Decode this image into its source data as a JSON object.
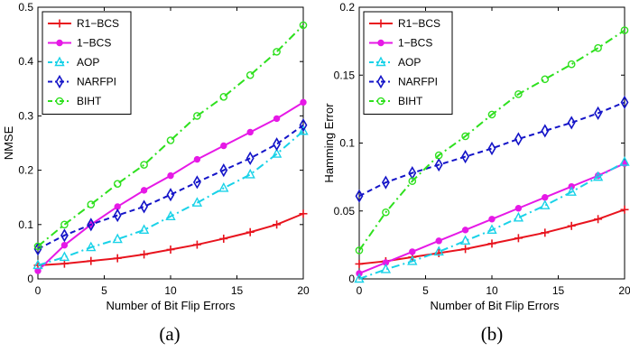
{
  "chart_data": [
    {
      "type": "line",
      "subcaption": "(a)",
      "xlabel": "Number of Bit Flip Errors",
      "ylabel": "NMSE",
      "xlim": [
        0,
        20
      ],
      "ylim": [
        0,
        0.5
      ],
      "xticks": [
        "0",
        "5",
        "10",
        "15",
        "20"
      ],
      "yticks": [
        "0",
        "0.1",
        "0.2",
        "0.3",
        "0.4",
        "0.5"
      ],
      "legend_position": "top-left",
      "grid": false,
      "x": [
        0,
        2,
        4,
        6,
        8,
        10,
        12,
        14,
        16,
        18,
        20
      ],
      "series": [
        {
          "name": "R1−BCS",
          "color": "#e8141e",
          "dash": "",
          "marker": "plus",
          "values": [
            0.025,
            0.028,
            0.033,
            0.038,
            0.045,
            0.054,
            0.063,
            0.074,
            0.086,
            0.1,
            0.12
          ]
        },
        {
          "name": "1−BCS",
          "color": "#e619e6",
          "dash": "",
          "marker": "dot",
          "values": [
            0.015,
            0.062,
            0.1,
            0.133,
            0.163,
            0.19,
            0.22,
            0.245,
            0.27,
            0.295,
            0.325
          ]
        },
        {
          "name": "AOP",
          "color": "#19d2e8",
          "dash": "9 4 2 4",
          "marker": "triangle",
          "values": [
            0.025,
            0.04,
            0.058,
            0.073,
            0.09,
            0.115,
            0.14,
            0.167,
            0.192,
            0.23,
            0.272
          ]
        },
        {
          "name": "NARFPI",
          "color": "#1414c8",
          "dash": "6 4",
          "marker": "diamond",
          "values": [
            0.055,
            0.08,
            0.1,
            0.117,
            0.133,
            0.155,
            0.178,
            0.2,
            0.222,
            0.248,
            0.283
          ]
        },
        {
          "name": "BIHT",
          "color": "#2ee01e",
          "dash": "9 4 2 4",
          "marker": "circle",
          "values": [
            0.06,
            0.1,
            0.137,
            0.175,
            0.21,
            0.255,
            0.3,
            0.335,
            0.375,
            0.418,
            0.467
          ]
        }
      ]
    },
    {
      "type": "line",
      "subcaption": "(b)",
      "xlabel": "Number of Bit Flip Errors",
      "ylabel": "Hamming Error",
      "xlim": [
        0,
        20
      ],
      "ylim": [
        0,
        0.2
      ],
      "xticks": [
        "0",
        "5",
        "10",
        "15",
        "20"
      ],
      "yticks": [
        "0",
        "0.05",
        "0.1",
        "0.15",
        "0.2"
      ],
      "legend_position": "top-left",
      "grid": false,
      "x": [
        0,
        2,
        4,
        6,
        8,
        10,
        12,
        14,
        16,
        18,
        20
      ],
      "series": [
        {
          "name": "R1−BCS",
          "color": "#e8141e",
          "dash": "",
          "marker": "plus",
          "values": [
            0.011,
            0.013,
            0.016,
            0.019,
            0.022,
            0.026,
            0.03,
            0.034,
            0.039,
            0.044,
            0.051
          ]
        },
        {
          "name": "1−BCS",
          "color": "#e619e6",
          "dash": "",
          "marker": "dot",
          "values": [
            0.004,
            0.012,
            0.02,
            0.028,
            0.036,
            0.044,
            0.052,
            0.06,
            0.068,
            0.076,
            0.085
          ]
        },
        {
          "name": "AOP",
          "color": "#19d2e8",
          "dash": "9 4 2 4",
          "marker": "triangle",
          "values": [
            0.0,
            0.007,
            0.013,
            0.02,
            0.028,
            0.036,
            0.045,
            0.054,
            0.064,
            0.075,
            0.086
          ]
        },
        {
          "name": "NARFPI",
          "color": "#1414c8",
          "dash": "6 4",
          "marker": "diamond",
          "values": [
            0.061,
            0.071,
            0.078,
            0.084,
            0.09,
            0.096,
            0.103,
            0.109,
            0.115,
            0.122,
            0.13
          ]
        },
        {
          "name": "BIHT",
          "color": "#2ee01e",
          "dash": "9 4 2 4",
          "marker": "circle",
          "values": [
            0.021,
            0.049,
            0.072,
            0.091,
            0.105,
            0.121,
            0.136,
            0.147,
            0.158,
            0.17,
            0.183
          ]
        }
      ]
    }
  ]
}
